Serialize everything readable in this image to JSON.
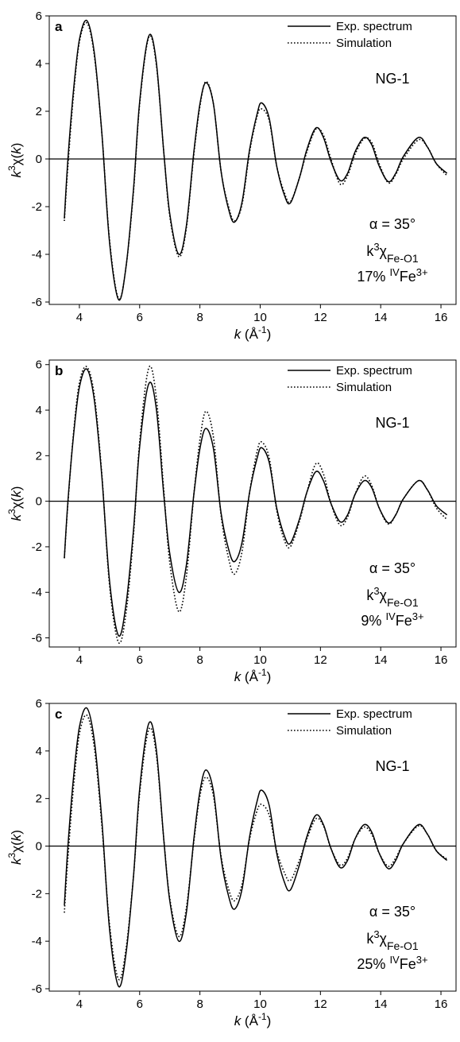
{
  "figure": {
    "panel_xlabel": "k (Å⁻¹)",
    "panel_ylabel": "k³χ(k)"
  },
  "chart_data": [
    {
      "type": "line",
      "panel": "a",
      "xlabel": "k (Å⁻¹)",
      "ylabel": "k³χ(k)",
      "xlim": [
        3,
        16.5
      ],
      "ylim": [
        -6.1,
        6
      ],
      "xticks": [
        4,
        6,
        8,
        10,
        12,
        14,
        16
      ],
      "yticks": [
        -6,
        -4,
        -2,
        0,
        2,
        4,
        6
      ],
      "grid": false,
      "legend_position": "top-right",
      "annotations": [
        "NG-1",
        "α = 35°",
        "k³χFe-O1",
        "17% ᴵⱽFe³⁺"
      ],
      "series": [
        {
          "name": "Exp. spectrum",
          "style": "solid",
          "x": [
            3.5,
            3.62,
            3.8,
            4.0,
            4.25,
            4.5,
            4.75,
            5.0,
            5.3,
            5.55,
            5.8,
            6.0,
            6.3,
            6.55,
            6.8,
            7.0,
            7.3,
            7.55,
            7.8,
            8.0,
            8.2,
            8.45,
            8.7,
            8.95,
            9.15,
            9.4,
            9.65,
            9.9,
            10.05,
            10.3,
            10.55,
            10.8,
            11.0,
            11.3,
            11.55,
            11.85,
            12.1,
            12.35,
            12.65,
            12.9,
            13.15,
            13.45,
            13.7,
            13.95,
            14.25,
            14.5,
            14.75,
            15.25,
            15.55,
            15.85,
            16.2
          ],
          "y": [
            -2.5,
            0.0,
            2.8,
            5.0,
            5.8,
            4.4,
            1.0,
            -3.5,
            -5.9,
            -4.5,
            -1.2,
            2.4,
            5.15,
            4.1,
            0.3,
            -2.3,
            -4.0,
            -2.8,
            0.3,
            2.3,
            3.2,
            2.3,
            -0.5,
            -2.1,
            -2.65,
            -1.8,
            0.4,
            1.9,
            2.35,
            1.7,
            -0.3,
            -1.5,
            -1.85,
            -0.8,
            0.4,
            1.3,
            0.9,
            -0.1,
            -0.9,
            -0.6,
            0.3,
            0.9,
            0.6,
            -0.3,
            -0.95,
            -0.6,
            0.1,
            0.9,
            0.5,
            -0.2,
            -0.6
          ]
        },
        {
          "name": "Simulation",
          "style": "dotted",
          "x": [
            3.5,
            3.62,
            3.8,
            4.0,
            4.25,
            4.5,
            4.75,
            5.0,
            5.3,
            5.55,
            5.8,
            6.0,
            6.3,
            6.55,
            6.8,
            7.0,
            7.3,
            7.55,
            7.8,
            8.0,
            8.2,
            8.45,
            8.7,
            8.95,
            9.15,
            9.4,
            9.65,
            9.9,
            10.05,
            10.3,
            10.55,
            10.8,
            11.0,
            11.3,
            11.55,
            11.85,
            12.1,
            12.35,
            12.65,
            12.9,
            13.15,
            13.45,
            13.7,
            13.95,
            14.25,
            14.5,
            14.75,
            15.25,
            15.55,
            15.85,
            16.2
          ],
          "y": [
            -2.6,
            -0.3,
            2.6,
            4.9,
            5.7,
            4.3,
            1.0,
            -3.4,
            -5.85,
            -4.5,
            -1.3,
            2.3,
            5.1,
            4.0,
            0.3,
            -2.4,
            -4.1,
            -2.9,
            0.2,
            2.2,
            3.25,
            2.3,
            -0.5,
            -2.0,
            -2.6,
            -1.9,
            0.3,
            1.8,
            2.1,
            1.6,
            -0.3,
            -1.4,
            -1.8,
            -0.8,
            0.3,
            1.25,
            1.0,
            0.0,
            -1.05,
            -0.7,
            0.2,
            0.85,
            0.7,
            -0.2,
            -1.0,
            -0.65,
            0.0,
            0.8,
            0.5,
            -0.2,
            -0.7
          ]
        }
      ]
    },
    {
      "type": "line",
      "panel": "b",
      "xlabel": "k (Å⁻¹)",
      "ylabel": "k³χ(k)",
      "xlim": [
        3,
        16.5
      ],
      "ylim": [
        -6.4,
        6.2
      ],
      "xticks": [
        4,
        6,
        8,
        10,
        12,
        14,
        16
      ],
      "yticks": [
        -6,
        -4,
        -2,
        0,
        2,
        4,
        6
      ],
      "grid": false,
      "legend_position": "top-right",
      "annotations": [
        "NG-1",
        "α = 35°",
        "k³χFe-O1",
        "9% ᴵⱽFe³⁺"
      ],
      "series": [
        {
          "name": "Exp. spectrum",
          "style": "solid",
          "x": [
            3.5,
            3.62,
            3.8,
            4.0,
            4.25,
            4.5,
            4.75,
            5.0,
            5.3,
            5.55,
            5.8,
            6.0,
            6.3,
            6.55,
            6.8,
            7.0,
            7.3,
            7.55,
            7.8,
            8.0,
            8.2,
            8.45,
            8.7,
            8.95,
            9.15,
            9.4,
            9.65,
            9.9,
            10.05,
            10.3,
            10.55,
            10.8,
            11.0,
            11.3,
            11.55,
            11.85,
            12.1,
            12.35,
            12.65,
            12.9,
            13.15,
            13.45,
            13.7,
            13.95,
            14.25,
            14.5,
            14.75,
            15.25,
            15.55,
            15.85,
            16.2
          ],
          "y": [
            -2.5,
            0.0,
            2.8,
            5.0,
            5.8,
            4.4,
            1.0,
            -3.5,
            -5.9,
            -4.5,
            -1.2,
            2.4,
            5.15,
            4.1,
            0.3,
            -2.3,
            -4.0,
            -2.8,
            0.3,
            2.3,
            3.2,
            2.3,
            -0.5,
            -2.1,
            -2.65,
            -1.8,
            0.4,
            1.9,
            2.35,
            1.7,
            -0.3,
            -1.5,
            -1.85,
            -0.8,
            0.4,
            1.3,
            0.9,
            -0.1,
            -0.9,
            -0.6,
            0.3,
            0.9,
            0.6,
            -0.3,
            -0.95,
            -0.6,
            0.1,
            0.9,
            0.5,
            -0.2,
            -0.6
          ]
        },
        {
          "name": "Simulation",
          "style": "dotted",
          "x": [
            3.5,
            3.62,
            3.8,
            4.0,
            4.25,
            4.5,
            4.75,
            5.0,
            5.3,
            5.55,
            5.8,
            6.0,
            6.3,
            6.55,
            6.8,
            7.0,
            7.3,
            7.55,
            7.8,
            8.0,
            8.2,
            8.45,
            8.7,
            8.95,
            9.15,
            9.4,
            9.65,
            9.9,
            10.05,
            10.3,
            10.55,
            10.8,
            11.0,
            11.3,
            11.55,
            11.85,
            12.1,
            12.35,
            12.65,
            12.9,
            13.15,
            13.45,
            13.7,
            13.95,
            14.25,
            14.5,
            14.75,
            15.25,
            15.55,
            15.85,
            16.2
          ],
          "y": [
            -2.5,
            -0.1,
            2.9,
            5.2,
            5.9,
            4.6,
            1.1,
            -3.7,
            -6.2,
            -4.9,
            -1.4,
            2.6,
            5.85,
            4.6,
            0.5,
            -2.7,
            -4.85,
            -3.3,
            0.3,
            2.7,
            3.95,
            2.8,
            -0.6,
            -2.5,
            -3.2,
            -2.2,
            0.4,
            2.2,
            2.6,
            1.9,
            -0.4,
            -1.7,
            -2.0,
            -0.9,
            0.4,
            1.65,
            1.2,
            -0.1,
            -1.05,
            -0.7,
            0.3,
            1.1,
            0.7,
            -0.3,
            -1.0,
            -0.6,
            0.1,
            0.9,
            0.5,
            -0.3,
            -0.8
          ]
        }
      ]
    },
    {
      "type": "line",
      "panel": "c",
      "xlabel": "k (Å⁻¹)",
      "ylabel": "k³χ(k)",
      "xlim": [
        3,
        16.5
      ],
      "ylim": [
        -6.1,
        6
      ],
      "xticks": [
        4,
        6,
        8,
        10,
        12,
        14,
        16
      ],
      "yticks": [
        -6,
        -4,
        -2,
        0,
        2,
        4,
        6
      ],
      "grid": false,
      "legend_position": "top-right",
      "annotations": [
        "NG-1",
        "α = 35°",
        "k³χFe-O1",
        "25% ᴵⱽFe³⁺"
      ],
      "series": [
        {
          "name": "Exp. spectrum",
          "style": "solid",
          "x": [
            3.5,
            3.62,
            3.8,
            4.0,
            4.25,
            4.5,
            4.75,
            5.0,
            5.3,
            5.55,
            5.8,
            6.0,
            6.3,
            6.55,
            6.8,
            7.0,
            7.3,
            7.55,
            7.8,
            8.0,
            8.2,
            8.45,
            8.7,
            8.95,
            9.15,
            9.4,
            9.65,
            9.9,
            10.05,
            10.3,
            10.55,
            10.8,
            11.0,
            11.3,
            11.55,
            11.85,
            12.1,
            12.35,
            12.65,
            12.9,
            13.15,
            13.45,
            13.7,
            13.95,
            14.25,
            14.5,
            14.75,
            15.25,
            15.55,
            15.85,
            16.2
          ],
          "y": [
            -2.5,
            0.0,
            2.8,
            5.0,
            5.8,
            4.4,
            1.0,
            -3.5,
            -5.9,
            -4.5,
            -1.2,
            2.4,
            5.15,
            4.1,
            0.3,
            -2.3,
            -4.0,
            -2.8,
            0.3,
            2.3,
            3.2,
            2.3,
            -0.5,
            -2.1,
            -2.65,
            -1.8,
            0.4,
            1.9,
            2.35,
            1.7,
            -0.3,
            -1.5,
            -1.85,
            -0.8,
            0.4,
            1.3,
            0.9,
            -0.1,
            -0.9,
            -0.6,
            0.3,
            0.9,
            0.6,
            -0.3,
            -0.95,
            -0.6,
            0.1,
            0.9,
            0.5,
            -0.2,
            -0.6
          ]
        },
        {
          "name": "Simulation",
          "style": "dotted",
          "x": [
            3.5,
            3.62,
            3.8,
            4.0,
            4.25,
            4.5,
            4.75,
            5.0,
            5.3,
            5.55,
            5.8,
            6.0,
            6.3,
            6.55,
            6.8,
            7.0,
            7.3,
            7.55,
            7.8,
            8.0,
            8.2,
            8.45,
            8.7,
            8.95,
            9.15,
            9.4,
            9.65,
            9.9,
            10.05,
            10.3,
            10.55,
            10.8,
            11.0,
            11.3,
            11.55,
            11.85,
            12.1,
            12.35,
            12.65,
            12.9,
            13.15,
            13.45,
            13.7,
            13.95,
            14.25,
            14.5,
            14.75,
            15.25,
            15.55,
            15.85,
            16.2
          ],
          "y": [
            -2.8,
            -0.5,
            2.4,
            4.7,
            5.5,
            4.1,
            0.8,
            -3.3,
            -5.6,
            -4.3,
            -1.2,
            2.2,
            4.9,
            3.9,
            0.3,
            -2.2,
            -3.8,
            -2.6,
            0.2,
            2.1,
            2.9,
            2.1,
            -0.4,
            -1.8,
            -2.3,
            -1.6,
            0.3,
            1.5,
            1.75,
            1.3,
            -0.2,
            -1.1,
            -1.45,
            -0.6,
            0.3,
            1.15,
            0.85,
            -0.1,
            -0.8,
            -0.5,
            0.3,
            0.8,
            0.5,
            -0.3,
            -0.85,
            -0.5,
            0.1,
            0.85,
            0.5,
            -0.2,
            -0.55
          ]
        }
      ]
    }
  ]
}
